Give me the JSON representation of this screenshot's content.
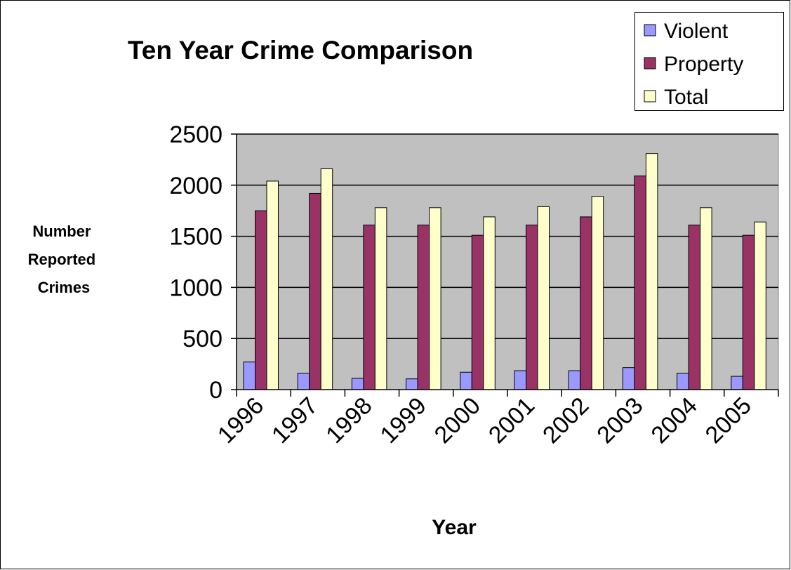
{
  "chart_data": {
    "type": "bar",
    "title": "Ten Year Crime Comparison",
    "xlabel": "Year",
    "ylabel_lines": [
      "Number",
      "Reported",
      "Crimes"
    ],
    "categories": [
      "1996",
      "1997",
      "1998",
      "1999",
      "2000",
      "2001",
      "2002",
      "2003",
      "2004",
      "2005"
    ],
    "series": [
      {
        "name": "Violent",
        "color": "#9999ff",
        "values": [
          270,
          160,
          110,
          105,
          170,
          185,
          185,
          215,
          160,
          130
        ]
      },
      {
        "name": "Property",
        "color": "#993366",
        "values": [
          1750,
          1920,
          1610,
          1610,
          1510,
          1610,
          1690,
          2090,
          1610,
          1510
        ]
      },
      {
        "name": "Total",
        "color": "#ffffcc",
        "values": [
          2040,
          2160,
          1780,
          1780,
          1690,
          1790,
          1890,
          2310,
          1780,
          1640
        ]
      }
    ],
    "ylim": [
      0,
      2500
    ],
    "yticks": [
      0,
      500,
      1000,
      1500,
      2000,
      2500
    ],
    "grid": true,
    "plot_background": "#c0c0c0",
    "legend": "top-right"
  }
}
